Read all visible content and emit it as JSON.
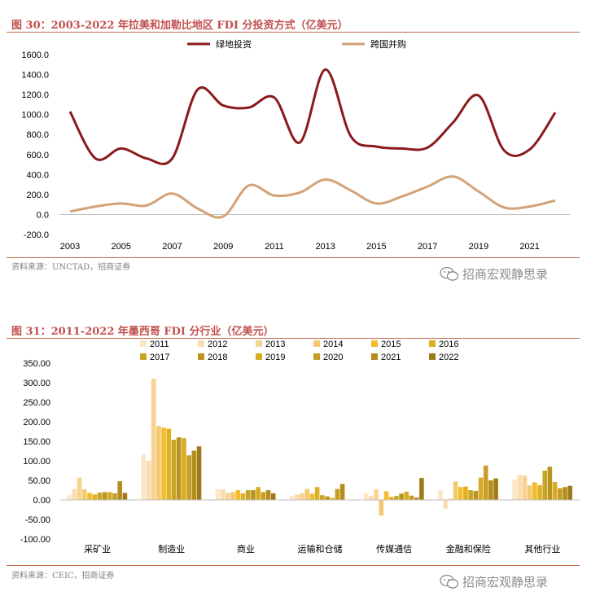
{
  "figure1": {
    "title": "图 30：2003-2022 年拉美和加勒比地区 FDI 分投资方式（亿美元）",
    "source": "资料来源：UNCTAD，招商证券",
    "watermark": "招商宏观静思录"
  },
  "figure2": {
    "title": "图 31：2011-2022 年墨西哥 FDI 分行业（亿美元）",
    "source": "资料来源：CEIC，招商证券",
    "watermark": "招商宏观静思录"
  },
  "icons": {
    "watermark": "wechat-bubble-icon"
  },
  "chart_data": [
    {
      "type": "line",
      "x": [
        2003,
        2004,
        2005,
        2006,
        2007,
        2008,
        2009,
        2010,
        2011,
        2012,
        2013,
        2014,
        2015,
        2016,
        2017,
        2018,
        2019,
        2020,
        2021,
        2022
      ],
      "xticks": [
        "2003",
        "2005",
        "2007",
        "2009",
        "2011",
        "2013",
        "2015",
        "2017",
        "2019",
        "2021"
      ],
      "ylim": [
        -200,
        1600
      ],
      "yticks": [
        "-200.0",
        "0.0",
        "200.0",
        "400.0",
        "600.0",
        "800.0",
        "1000.0",
        "1200.0",
        "1400.0",
        "1600.0"
      ],
      "legend_position": "top",
      "grid": false,
      "series": [
        {
          "name": "绿地投资",
          "color": "#8b1a1a",
          "values": [
            1030,
            560,
            660,
            560,
            560,
            1250,
            1090,
            1070,
            1170,
            720,
            1450,
            780,
            680,
            660,
            670,
            920,
            1190,
            640,
            650,
            1020
          ]
        },
        {
          "name": "跨国并购",
          "color": "#d4a277",
          "values": [
            30,
            80,
            110,
            90,
            210,
            60,
            -20,
            290,
            190,
            220,
            350,
            240,
            110,
            180,
            280,
            380,
            230,
            70,
            80,
            140
          ]
        }
      ]
    },
    {
      "type": "bar",
      "categories": [
        "采矿业",
        "制造业",
        "商业",
        "运输和仓储",
        "传媒通信",
        "金融和保险",
        "其他行业"
      ],
      "ylim": [
        -100,
        350
      ],
      "yticks": [
        "-100.00",
        "-50.00",
        "0.00",
        "50.00",
        "100.00",
        "150.00",
        "200.00",
        "250.00",
        "300.00",
        "350.00"
      ],
      "legend_position": "top",
      "grid": false,
      "series": [
        {
          "name": "2011",
          "color": "#fbe6c5",
          "values": [
            12,
            117,
            28,
            10,
            18,
            25,
            52
          ]
        },
        {
          "name": "2012",
          "color": "#f9dcb0",
          "values": [
            28,
            100,
            27,
            14,
            10,
            -22,
            64
          ]
        },
        {
          "name": "2013",
          "color": "#f8d290",
          "values": [
            57,
            310,
            18,
            17,
            27,
            3,
            62
          ]
        },
        {
          "name": "2014",
          "color": "#f5c971",
          "values": [
            27,
            189,
            20,
            28,
            -40,
            47,
            37
          ]
        },
        {
          "name": "2015",
          "color": "#f2bc2d",
          "values": [
            18,
            185,
            25,
            16,
            22,
            33,
            45
          ]
        },
        {
          "name": "2016",
          "color": "#e0b020",
          "values": [
            14,
            182,
            17,
            33,
            8,
            34,
            38
          ]
        },
        {
          "name": "2017",
          "color": "#c9a526",
          "values": [
            19,
            154,
            25,
            12,
            10,
            25,
            75
          ]
        },
        {
          "name": "2018",
          "color": "#b99520",
          "values": [
            20,
            160,
            25,
            9,
            16,
            23,
            85
          ]
        },
        {
          "name": "2019",
          "color": "#d8ac22",
          "values": [
            20,
            158,
            33,
            5,
            21,
            57,
            46
          ]
        },
        {
          "name": "2020",
          "color": "#c79d25",
          "values": [
            17,
            114,
            20,
            28,
            11,
            88,
            30
          ]
        },
        {
          "name": "2021",
          "color": "#b58d1d",
          "values": [
            48,
            126,
            25,
            41,
            6,
            50,
            33
          ]
        },
        {
          "name": "2022",
          "color": "#9e7a18",
          "values": [
            18,
            137,
            17,
            0,
            56,
            55,
            36
          ]
        }
      ]
    }
  ]
}
